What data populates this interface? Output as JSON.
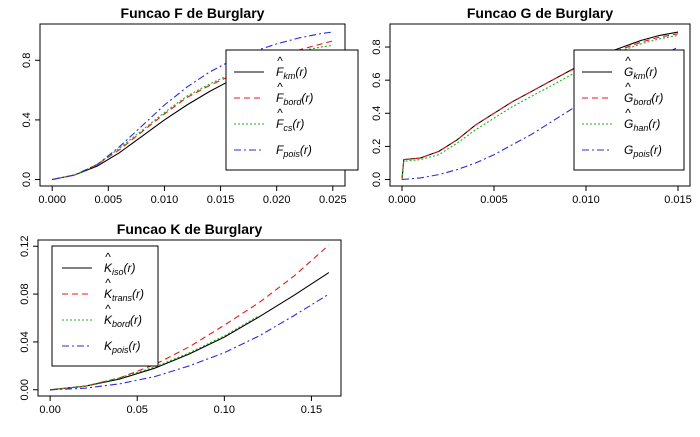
{
  "chart_data": [
    {
      "type": "line",
      "title": "Funcao F de Burglary",
      "xlabel": "",
      "ylabel": "",
      "xlim": [
        0,
        0.025
      ],
      "ylim": [
        0,
        1.0
      ],
      "xticks": [
        "0.000",
        "0.005",
        "0.010",
        "0.015",
        "0.020",
        "0.025"
      ],
      "yticks": [
        "0.0",
        "0.4",
        "0.8"
      ],
      "legend_position": "right",
      "series": [
        {
          "name": "F_km(r)",
          "sym": "F",
          "hat": true,
          "sub": "km",
          "color": "#000000",
          "dash": "",
          "x": [
            0,
            0.002,
            0.004,
            0.006,
            0.008,
            0.01,
            0.012,
            0.014,
            0.016,
            0.018,
            0.02,
            0.022,
            0.024,
            0.025
          ],
          "y": [
            0,
            0.03,
            0.09,
            0.18,
            0.29,
            0.4,
            0.5,
            0.59,
            0.67,
            0.73,
            0.78,
            0.82,
            0.855,
            0.87
          ]
        },
        {
          "name": "F_bord(r)",
          "sym": "F",
          "hat": true,
          "sub": "bord",
          "color": "#e41a1c",
          "dash": "6,4",
          "x": [
            0,
            0.002,
            0.004,
            0.006,
            0.008,
            0.01,
            0.012,
            0.014,
            0.016,
            0.018,
            0.02,
            0.022,
            0.024,
            0.025
          ],
          "y": [
            0,
            0.03,
            0.1,
            0.2,
            0.32,
            0.44,
            0.55,
            0.63,
            0.7,
            0.76,
            0.82,
            0.87,
            0.91,
            0.93
          ]
        },
        {
          "name": "F_cs(r)",
          "sym": "F",
          "hat": true,
          "sub": "cs",
          "color": "#1fb01f",
          "dash": "2,2",
          "x": [
            0,
            0.002,
            0.004,
            0.006,
            0.008,
            0.01,
            0.012,
            0.014,
            0.016,
            0.018,
            0.02,
            0.022,
            0.024,
            0.025
          ],
          "y": [
            0,
            0.03,
            0.1,
            0.21,
            0.33,
            0.45,
            0.56,
            0.64,
            0.71,
            0.77,
            0.82,
            0.86,
            0.89,
            0.9
          ]
        },
        {
          "name": "F_pois(r)",
          "sym": "F",
          "hat": false,
          "sub": "pois",
          "color": "#2b2bd6",
          "dash": "7,3,2,3",
          "x": [
            0,
            0.002,
            0.004,
            0.006,
            0.008,
            0.01,
            0.012,
            0.014,
            0.016,
            0.018,
            0.02,
            0.022,
            0.024,
            0.025
          ],
          "y": [
            0,
            0.03,
            0.1,
            0.22,
            0.36,
            0.5,
            0.62,
            0.72,
            0.8,
            0.86,
            0.91,
            0.95,
            0.98,
            0.99
          ]
        }
      ]
    },
    {
      "type": "line",
      "title": "Funcao G de Burglary",
      "xlabel": "",
      "ylabel": "",
      "xlim": [
        0,
        0.015
      ],
      "ylim": [
        0,
        0.9
      ],
      "xticks": [
        "0.000",
        "0.005",
        "0.010",
        "0.015"
      ],
      "yticks": [
        "0.0",
        "0.2",
        "0.4",
        "0.6",
        "0.8"
      ],
      "legend_position": "right",
      "series": [
        {
          "name": "G_km(r)",
          "sym": "G",
          "hat": true,
          "sub": "km",
          "color": "#000000",
          "dash": "",
          "x": [
            0,
            0.0001,
            0.001,
            0.002,
            0.003,
            0.004,
            0.005,
            0.006,
            0.007,
            0.008,
            0.009,
            0.01,
            0.011,
            0.012,
            0.013,
            0.014,
            0.015
          ],
          "y": [
            0,
            0.12,
            0.13,
            0.17,
            0.24,
            0.33,
            0.4,
            0.47,
            0.53,
            0.59,
            0.65,
            0.71,
            0.76,
            0.8,
            0.84,
            0.87,
            0.89
          ]
        },
        {
          "name": "G_bord(r)",
          "sym": "G",
          "hat": true,
          "sub": "bord",
          "color": "#e41a1c",
          "dash": "6,4",
          "x": [
            0,
            0.0001,
            0.001,
            0.002,
            0.003,
            0.004,
            0.005,
            0.006,
            0.007,
            0.008,
            0.009,
            0.01,
            0.011,
            0.012,
            0.013,
            0.014,
            0.015
          ],
          "y": [
            0,
            0.12,
            0.13,
            0.17,
            0.24,
            0.33,
            0.4,
            0.47,
            0.53,
            0.59,
            0.65,
            0.7,
            0.75,
            0.79,
            0.83,
            0.86,
            0.88
          ]
        },
        {
          "name": "G_han(r)",
          "sym": "G",
          "hat": true,
          "sub": "han",
          "color": "#1fb01f",
          "dash": "2,2",
          "x": [
            0,
            0.0001,
            0.001,
            0.002,
            0.003,
            0.004,
            0.005,
            0.006,
            0.007,
            0.008,
            0.009,
            0.01,
            0.011,
            0.012,
            0.013,
            0.014,
            0.015
          ],
          "y": [
            0,
            0.11,
            0.12,
            0.15,
            0.22,
            0.3,
            0.37,
            0.44,
            0.5,
            0.56,
            0.62,
            0.68,
            0.73,
            0.78,
            0.82,
            0.85,
            0.87
          ]
        },
        {
          "name": "G_pois(r)",
          "sym": "G",
          "hat": false,
          "sub": "pois",
          "color": "#2b2bd6",
          "dash": "7,3,2,3",
          "x": [
            0,
            0.001,
            0.002,
            0.003,
            0.004,
            0.005,
            0.006,
            0.007,
            0.008,
            0.009,
            0.01,
            0.011,
            0.012,
            0.013,
            0.014,
            0.015
          ],
          "y": [
            0,
            0.01,
            0.03,
            0.06,
            0.1,
            0.15,
            0.21,
            0.27,
            0.34,
            0.41,
            0.48,
            0.55,
            0.62,
            0.68,
            0.74,
            0.8
          ]
        }
      ]
    },
    {
      "type": "line",
      "title": "Funcao K de Burglary",
      "xlabel": "",
      "ylabel": "",
      "xlim": [
        0,
        0.16
      ],
      "ylim": [
        0,
        0.12
      ],
      "xticks": [
        "0.00",
        "0.05",
        "0.10",
        "0.15"
      ],
      "yticks": [
        "0.00",
        "0.04",
        "0.08",
        "0.12"
      ],
      "legend_position": "top-left",
      "series": [
        {
          "name": "K_iso(r)",
          "sym": "K",
          "hat": true,
          "sub": "iso",
          "color": "#000000",
          "dash": "",
          "x": [
            0,
            0.02,
            0.04,
            0.06,
            0.08,
            0.1,
            0.12,
            0.14,
            0.16
          ],
          "y": [
            0,
            0.003,
            0.009,
            0.018,
            0.03,
            0.044,
            0.061,
            0.079,
            0.098
          ]
        },
        {
          "name": "K_trans(r)",
          "sym": "K",
          "hat": true,
          "sub": "trans",
          "color": "#e41a1c",
          "dash": "6,4",
          "x": [
            0,
            0.02,
            0.04,
            0.06,
            0.08,
            0.1,
            0.12,
            0.14,
            0.16
          ],
          "y": [
            0,
            0.003,
            0.01,
            0.021,
            0.036,
            0.054,
            0.073,
            0.095,
            0.121
          ]
        },
        {
          "name": "K_bord(r)",
          "sym": "K",
          "hat": true,
          "sub": "bord",
          "color": "#1fb01f",
          "dash": "2,2",
          "x": [
            0,
            0.02,
            0.04,
            0.06,
            0.08,
            0.1,
            0.12
          ],
          "y": [
            0,
            0.003,
            0.01,
            0.019,
            0.031,
            0.045,
            0.062
          ]
        },
        {
          "name": "K_pois(r)",
          "sym": "K",
          "hat": false,
          "sub": "pois",
          "color": "#2b2bd6",
          "dash": "7,3,2,3",
          "x": [
            0,
            0.02,
            0.04,
            0.06,
            0.08,
            0.1,
            0.12,
            0.14,
            0.16
          ],
          "y": [
            0,
            0.0013,
            0.005,
            0.011,
            0.02,
            0.031,
            0.045,
            0.062,
            0.08
          ]
        }
      ]
    }
  ]
}
